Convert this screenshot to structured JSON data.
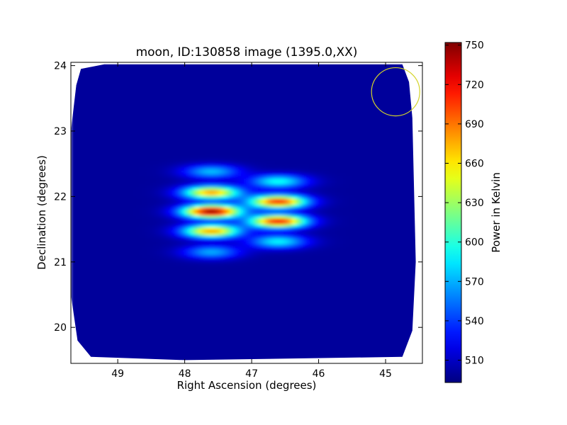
{
  "chart_data": {
    "type": "heatmap",
    "title": "moon, ID:130858 image (1395.0,XX)",
    "xlabel": "Right Ascension (degrees)",
    "ylabel": "Declination (degrees)",
    "xlim": [
      49.7,
      44.45
    ],
    "ylim": [
      19.45,
      24.05
    ],
    "x_ticks": [
      49,
      48,
      47,
      46,
      45
    ],
    "y_ticks": [
      20,
      21,
      22,
      23,
      24
    ],
    "colorbar": {
      "label": "Power in Kelvin",
      "range": [
        493,
        752
      ],
      "ticks": [
        510,
        540,
        570,
        600,
        630,
        660,
        690,
        720,
        750
      ],
      "colormap": "jet"
    },
    "background_level": 500,
    "coverage_polygon": [
      [
        49.55,
        23.95
      ],
      [
        49.2,
        24.02
      ],
      [
        44.75,
        24.02
      ],
      [
        44.65,
        23.75
      ],
      [
        44.6,
        23.2
      ],
      [
        44.55,
        21.0
      ],
      [
        44.6,
        19.95
      ],
      [
        44.75,
        19.55
      ],
      [
        48.0,
        19.5
      ],
      [
        49.4,
        19.55
      ],
      [
        49.6,
        19.8
      ],
      [
        49.7,
        20.5
      ],
      [
        49.7,
        23.0
      ],
      [
        49.62,
        23.7
      ]
    ],
    "lobes": [
      {
        "ra": 47.6,
        "dec": 22.38,
        "peak": 575
      },
      {
        "ra": 47.6,
        "dec": 22.06,
        "peak": 680
      },
      {
        "ra": 47.6,
        "dec": 21.77,
        "peak": 750
      },
      {
        "ra": 47.6,
        "dec": 21.47,
        "peak": 680
      },
      {
        "ra": 47.6,
        "dec": 21.15,
        "peak": 570
      },
      {
        "ra": 46.6,
        "dec": 22.23,
        "peak": 595
      },
      {
        "ra": 46.6,
        "dec": 21.92,
        "peak": 710
      },
      {
        "ra": 46.6,
        "dec": 21.62,
        "peak": 715
      },
      {
        "ra": 46.6,
        "dec": 21.31,
        "peak": 590
      }
    ],
    "beam_circle": {
      "ra": 44.85,
      "dec": 23.6,
      "radius_deg": 0.36,
      "color": "#d4d42a"
    },
    "colors": {
      "frame": "#000000",
      "background": "#ffffff"
    }
  }
}
